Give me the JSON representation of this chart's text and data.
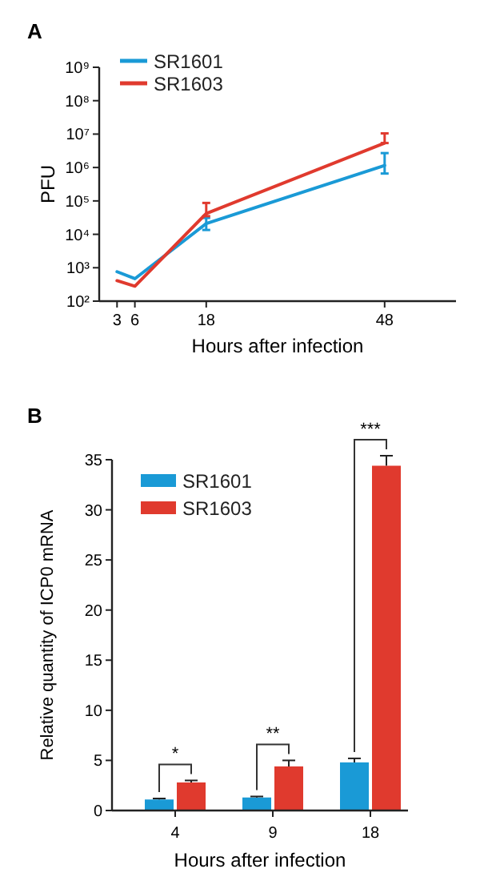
{
  "chart_data": [
    {
      "type": "line",
      "title": "A",
      "xlabel": "Hours after infection",
      "ylabel": "PFU",
      "x": [
        3,
        6,
        18,
        48
      ],
      "xlim": [
        0,
        60
      ],
      "xticks": [
        3,
        6,
        18,
        48
      ],
      "log": "y",
      "ylim": [
        100,
        1000000000
      ],
      "yticks": [
        {
          "value": 100,
          "label": "10²"
        },
        {
          "value": 1000,
          "label": "10³"
        },
        {
          "value": 10000,
          "label": "10⁴"
        },
        {
          "value": 100000,
          "label": "10⁵"
        },
        {
          "value": 1000000,
          "label": "10⁶"
        },
        {
          "value": 10000000,
          "label": "10⁷"
        },
        {
          "value": 100000000,
          "label": "10⁸"
        },
        {
          "value": 1000000000,
          "label": "10⁹"
        }
      ],
      "legend": "top left",
      "series": [
        {
          "name": "SR1601",
          "color": "#1a9ad6",
          "values": [
            760,
            470,
            21000,
            1150000
          ],
          "errors": [
            null,
            null,
            [
              13500,
              31000
            ],
            [
              660000,
              2700000
            ]
          ]
        },
        {
          "name": "SR1603",
          "color": "#e03a2e",
          "values": [
            410,
            280,
            42000,
            5400000
          ],
          "errors": [
            null,
            null,
            [
              35000,
              87000
            ],
            [
              5400000,
              10500000
            ]
          ]
        }
      ]
    },
    {
      "type": "bar",
      "title": "B",
      "xlabel": "Hours after infection",
      "ylabel": "Relative quantity of ICP0 mRNA",
      "categories": [
        "4",
        "9",
        "18"
      ],
      "ylim": [
        0,
        35
      ],
      "yticks": [
        0,
        5,
        10,
        15,
        20,
        25,
        30,
        35
      ],
      "legend": "top left",
      "series": [
        {
          "name": "SR1601",
          "color": "#1a9ad6",
          "values": [
            1.1,
            1.3,
            4.8
          ],
          "errors": [
            0.1,
            0.1,
            0.4
          ]
        },
        {
          "name": "SR1603",
          "color": "#e03a2e",
          "values": [
            2.8,
            4.4,
            34.4
          ],
          "errors": [
            0.2,
            0.6,
            1.0
          ]
        }
      ],
      "annotations": [
        "*",
        "**",
        "***"
      ]
    }
  ]
}
